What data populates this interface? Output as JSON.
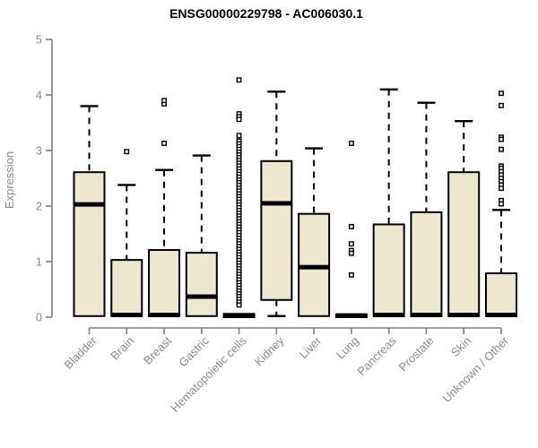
{
  "title": "ENSG00000229798 - AC006030.1",
  "chart_data": {
    "type": "boxplot",
    "title": "ENSG00000229798 - AC006030.1",
    "xlabel": "",
    "ylabel": "Expression",
    "ylim": [
      0,
      5
    ],
    "yticks": [
      0,
      1,
      2,
      3,
      4,
      5
    ],
    "grid": false,
    "legend": "none",
    "colors": {
      "box_fill": "#ece7cf",
      "box_border": "#000000",
      "median": "#000000",
      "whisker": "#000000",
      "outlier": "#000000",
      "axis_line": "#808080",
      "tick_label": "#8c8c8c",
      "title": "#000000"
    },
    "boxes": [
      {
        "category": "Bladder",
        "whislo": null,
        "q1": 0.02,
        "med": 2.03,
        "q3": 2.61,
        "whishi": 3.8,
        "outliers": []
      },
      {
        "category": "Brain",
        "whislo": null,
        "q1": 0.02,
        "med": 0.04,
        "q3": 1.03,
        "whishi": 2.38,
        "outliers": [
          2.98
        ]
      },
      {
        "category": "Breast",
        "whislo": null,
        "q1": 0.02,
        "med": 0.04,
        "q3": 1.21,
        "whishi": 2.65,
        "outliers": [
          3.13,
          3.84,
          3.9
        ]
      },
      {
        "category": "Gastric",
        "whislo": null,
        "q1": 0.02,
        "med": 0.37,
        "q3": 1.16,
        "whishi": 2.91,
        "outliers": []
      },
      {
        "category": "Hematopoietic cells",
        "whislo": null,
        "q1": 0.0,
        "med": 0.03,
        "q3": 0.06,
        "whishi": null,
        "outliers": [
          4.27,
          3.66,
          3.61,
          3.56,
          3.27,
          3.17,
          3.12,
          3.07,
          3.02,
          2.97,
          2.92,
          2.87,
          2.82,
          2.77,
          2.72,
          2.67,
          2.62,
          2.57,
          2.52,
          2.47,
          2.42,
          2.37,
          2.32,
          2.27,
          2.22,
          2.17,
          2.12,
          2.07,
          2.02,
          1.97,
          1.92,
          1.87,
          1.82,
          1.77,
          1.72,
          1.67,
          1.62,
          1.57,
          1.52,
          1.47,
          1.42,
          1.37,
          1.32,
          1.27,
          1.22,
          1.17,
          1.12,
          1.07,
          1.02,
          0.97,
          0.92,
          0.87,
          0.82,
          0.77,
          0.72,
          0.67,
          0.62,
          0.57,
          0.52,
          0.47,
          0.42,
          0.37,
          0.32,
          0.27,
          0.22
        ]
      },
      {
        "category": "Kidney",
        "whislo": 0.02,
        "q1": 0.31,
        "med": 2.05,
        "q3": 2.81,
        "whishi": 4.06,
        "outliers": []
      },
      {
        "category": "Liver",
        "whislo": null,
        "q1": 0.02,
        "med": 0.9,
        "q3": 1.86,
        "whishi": 3.04,
        "outliers": []
      },
      {
        "category": "Lung",
        "whislo": null,
        "q1": 0.0,
        "med": 0.03,
        "q3": 0.05,
        "whishi": null,
        "outliers": [
          3.13,
          1.63,
          1.32,
          1.2,
          1.15,
          0.76
        ]
      },
      {
        "category": "Pancreas",
        "whislo": null,
        "q1": 0.02,
        "med": 0.04,
        "q3": 1.67,
        "whishi": 4.1,
        "outliers": []
      },
      {
        "category": "Prostate",
        "whislo": null,
        "q1": 0.02,
        "med": 0.04,
        "q3": 1.89,
        "whishi": 3.86,
        "outliers": []
      },
      {
        "category": "Skin",
        "whislo": null,
        "q1": 0.02,
        "med": 0.04,
        "q3": 2.61,
        "whishi": 3.53,
        "outliers": []
      },
      {
        "category": "Unknown / Other",
        "whislo": null,
        "q1": 0.02,
        "med": 0.04,
        "q3": 0.79,
        "whishi": 1.93,
        "outliers": [
          4.03,
          3.81,
          3.24,
          3.2,
          3.02,
          2.72,
          2.68,
          2.62,
          2.56,
          2.5,
          2.44,
          2.38,
          2.32,
          2.1,
          2.04
        ]
      }
    ]
  }
}
